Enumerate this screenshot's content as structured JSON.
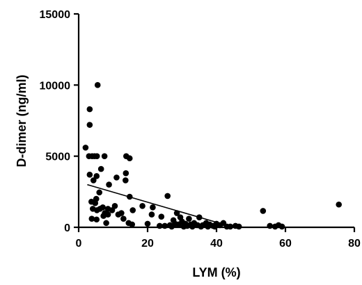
{
  "chart_data": {
    "type": "scatter",
    "title": "",
    "xlabel": "LYM (%)",
    "ylabel": "D-dimer (ng/ml)",
    "xlim": [
      0,
      80
    ],
    "ylim": [
      0,
      15000
    ],
    "xticks": [
      "0",
      "20",
      "40",
      "60",
      "80"
    ],
    "yticks": [
      "0",
      "5000",
      "10000",
      "15000"
    ],
    "xtick_values": [
      0,
      20,
      40,
      60,
      80
    ],
    "ytick_values": [
      0,
      5000,
      10000,
      15000
    ],
    "grid": false,
    "point_color": "#000000",
    "points": [
      [
        5.5,
        10000
      ],
      [
        3.2,
        8300
      ],
      [
        3.2,
        7200
      ],
      [
        2.0,
        5600
      ],
      [
        3.0,
        5000
      ],
      [
        3.9,
        5000
      ],
      [
        4.6,
        5000
      ],
      [
        5.3,
        5000
      ],
      [
        7.5,
        5000
      ],
      [
        13.8,
        5000
      ],
      [
        14.8,
        4850
      ],
      [
        6.5,
        4100
      ],
      [
        13.7,
        3800
      ],
      [
        3.2,
        3700
      ],
      [
        5.2,
        3600
      ],
      [
        4.3,
        3300
      ],
      [
        13.6,
        3300
      ],
      [
        11.0,
        3500
      ],
      [
        8.8,
        3000
      ],
      [
        6.0,
        2450
      ],
      [
        14.8,
        2150
      ],
      [
        25.8,
        2200
      ],
      [
        5.1,
        2000
      ],
      [
        3.7,
        1800
      ],
      [
        4.8,
        1700
      ],
      [
        7.0,
        1400
      ],
      [
        8.5,
        1300
      ],
      [
        10.5,
        1500
      ],
      [
        18.5,
        1500
      ],
      [
        21.5,
        1400
      ],
      [
        4.1,
        1300
      ],
      [
        5.3,
        1200
      ],
      [
        6.2,
        1300
      ],
      [
        7.6,
        1000
      ],
      [
        8.5,
        900
      ],
      [
        9.7,
        1200
      ],
      [
        11.5,
        900
      ],
      [
        12.4,
        1000
      ],
      [
        15.7,
        1200
      ],
      [
        21.2,
        900
      ],
      [
        24.0,
        750
      ],
      [
        28.5,
        1000
      ],
      [
        29.5,
        700
      ],
      [
        32.0,
        600
      ],
      [
        35.0,
        700
      ],
      [
        53.5,
        1150
      ],
      [
        75.5,
        1600
      ],
      [
        3.8,
        600
      ],
      [
        5.2,
        550
      ],
      [
        7.2,
        800
      ],
      [
        8.0,
        300
      ],
      [
        13.0,
        600
      ],
      [
        14.5,
        300
      ],
      [
        15.5,
        200
      ],
      [
        20.0,
        250
      ],
      [
        23.5,
        100
      ],
      [
        25.0,
        100
      ],
      [
        26.5,
        150
      ],
      [
        27.5,
        500
      ],
      [
        28.0,
        250
      ],
      [
        29.0,
        200
      ],
      [
        30.0,
        400
      ],
      [
        31.0,
        250
      ],
      [
        32.5,
        200
      ],
      [
        33.5,
        300
      ],
      [
        34.5,
        150
      ],
      [
        36.0,
        150
      ],
      [
        37.0,
        300
      ],
      [
        38.0,
        200
      ],
      [
        39.0,
        100
      ],
      [
        40.0,
        250
      ],
      [
        41.0,
        150
      ],
      [
        42.0,
        300
      ],
      [
        44.0,
        50
      ],
      [
        45.5,
        100
      ],
      [
        46.5,
        50
      ],
      [
        55.5,
        100
      ],
      [
        57.0,
        50
      ],
      [
        58.0,
        150
      ],
      [
        59.0,
        50
      ],
      [
        27.0,
        50
      ],
      [
        30.5,
        50
      ],
      [
        35.5,
        50
      ],
      [
        39.5,
        50
      ],
      [
        43.0,
        50
      ],
      [
        31.5,
        100
      ],
      [
        33.0,
        50
      ],
      [
        37.5,
        50
      ]
    ],
    "trendline": [
      [
        2.5,
        3000
      ],
      [
        45,
        0
      ]
    ]
  }
}
